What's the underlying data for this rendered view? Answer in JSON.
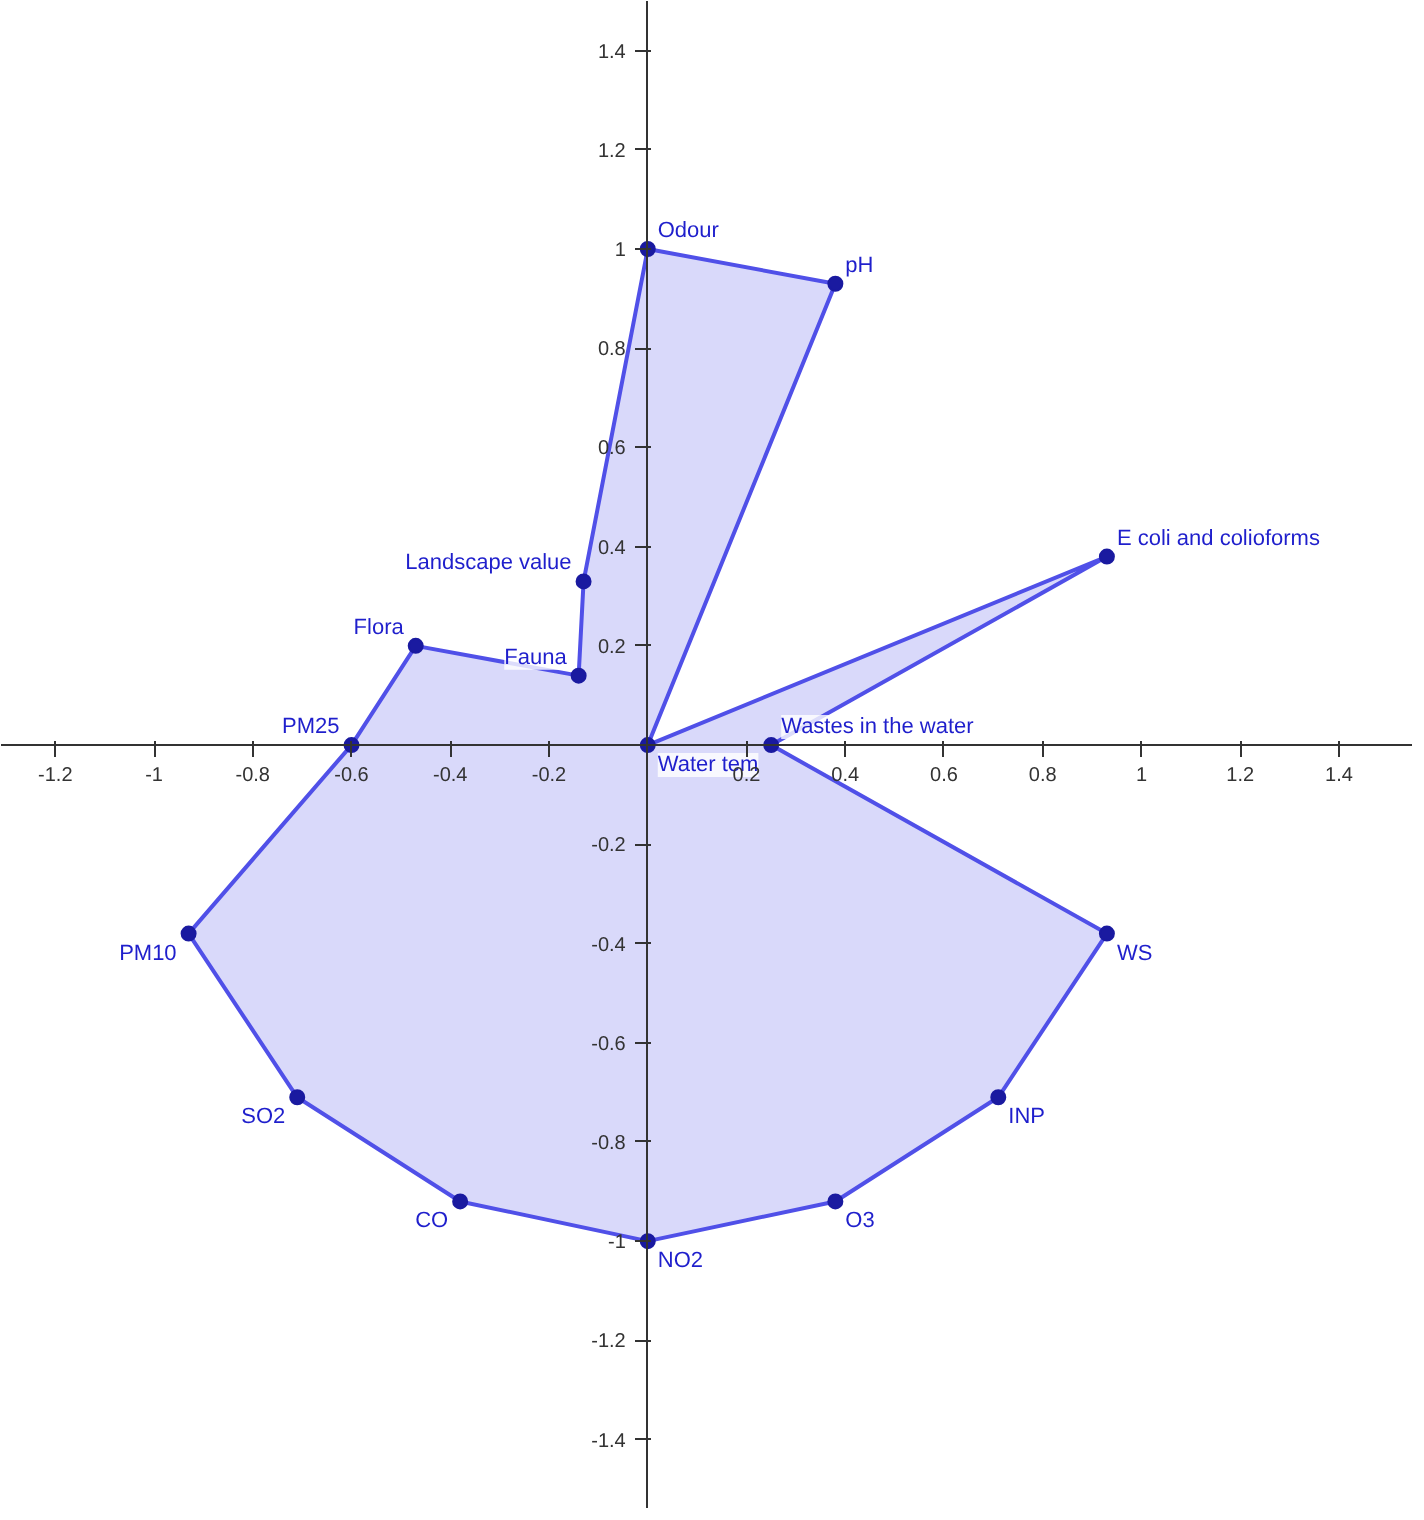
{
  "chart_data": {
    "type": "area",
    "x": [
      0,
      0.38,
      0,
      0.93,
      0.25,
      0.93,
      0.71,
      0.38,
      0,
      -0.38,
      -0.71,
      -0.93,
      -0.6,
      -0.47,
      -0.14,
      -0.13
    ],
    "series": [
      {
        "color": "#5050e8",
        "values": [
          1,
          0.93,
          0,
          0.38,
          0,
          -0.38,
          -0.71,
          -0.92,
          -1,
          -0.92,
          -0.71,
          -0.38,
          0,
          0.2,
          0.14,
          0.33
        ]
      }
    ],
    "xlim": [
      -1.31,
      1.55
    ],
    "ylim": [
      -1.54,
      1.5
    ],
    "xticks": [
      {
        "value": -1.2,
        "label": "-1.2"
      },
      {
        "value": -1,
        "label": "-1"
      },
      {
        "value": -0.8,
        "label": "-0.8"
      },
      {
        "value": -0.6,
        "label": "-0.6"
      },
      {
        "value": -0.4,
        "label": "-0.4"
      },
      {
        "value": -0.2,
        "label": "-0.2"
      },
      0.2,
      0.4,
      0.6,
      0.8,
      1,
      1.2,
      1.4
    ],
    "yticks": [
      {
        "value": -1.4,
        "label": "-1.4"
      },
      {
        "value": -1.2,
        "label": "-1.2"
      },
      {
        "value": -1,
        "label": "-1"
      },
      {
        "value": -0.8,
        "label": "-0.8"
      },
      {
        "value": -0.6,
        "label": "-0.6"
      },
      {
        "value": -0.4,
        "label": "-0.4"
      },
      {
        "value": -0.2,
        "label": "-0.2"
      },
      0.2,
      0.4,
      0.6,
      0.8,
      1,
      1.2,
      1.4
    ],
    "marker": "circle",
    "annotations": [
      {
        "text": "Odour",
        "x": 0,
        "y": 1
      },
      {
        "text": "pH",
        "x": 0.38,
        "y": 0.93
      },
      {
        "text": "Water tem",
        "x": 0,
        "y": 0
      },
      {
        "text": "E coli and colioforms",
        "x": 0.93,
        "y": 0.38
      },
      {
        "text": "Wastes in the water",
        "x": 0.25,
        "y": 0
      },
      {
        "text": "WS",
        "x": 0.93,
        "y": -0.38
      },
      {
        "text": "INP",
        "x": 0.71,
        "y": -0.71
      },
      {
        "text": "O3",
        "x": 0.38,
        "y": -0.92
      },
      {
        "text": "NO2",
        "x": 0,
        "y": -1
      },
      {
        "text": "CO",
        "x": -0.38,
        "y": -0.92
      },
      {
        "text": "SO2",
        "x": -0.71,
        "y": -0.71
      },
      {
        "text": "PM10",
        "x": -0.93,
        "y": -0.38
      },
      {
        "text": "PM25",
        "x": -0.6,
        "y": 0
      },
      {
        "text": "Flora",
        "x": -0.47,
        "y": 0.2
      },
      {
        "text": "Fauna",
        "x": -0.14,
        "y": 0.14
      },
      {
        "text": "Landscape value",
        "x": -0.13,
        "y": 0.33
      }
    ]
  }
}
